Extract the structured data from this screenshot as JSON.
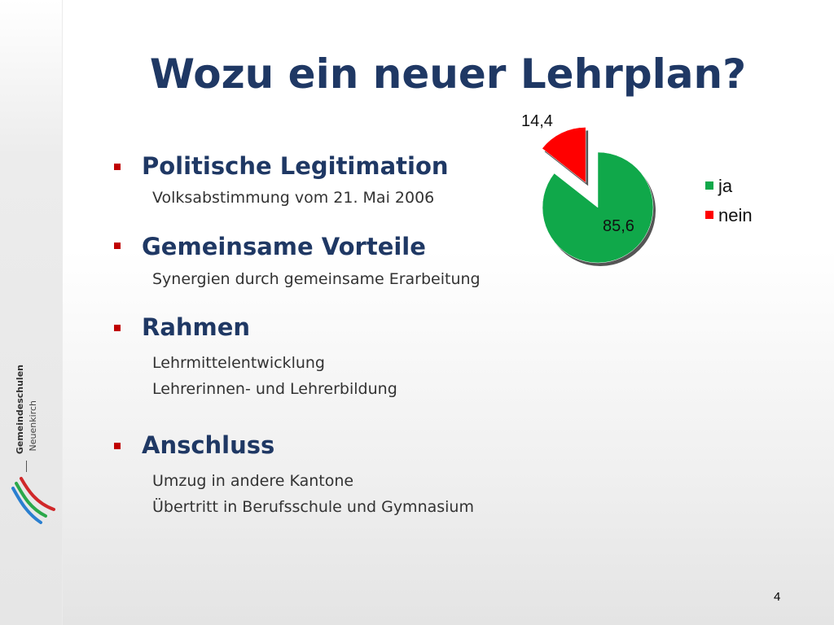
{
  "slide": {
    "title": "Wozu ein neuer Lehrplan?",
    "page_number": "4"
  },
  "logo": {
    "line1": "Gemeindeschulen",
    "line2": "Neuenkirch"
  },
  "sections": [
    {
      "heading": "Politische Legitimation",
      "items": [
        "Volksabstimmung vom 21. Mai 2006"
      ]
    },
    {
      "heading": "Gemeinsame Vorteile",
      "items": [
        "Synergien durch gemeinsame Erarbeitung"
      ]
    },
    {
      "heading": "Rahmen",
      "items": [
        "Lehrmittelentwicklung",
        "Lehrerinnen- und Lehrerbildung"
      ]
    },
    {
      "heading": "Anschluss",
      "items": [
        "Umzug in andere Kantone",
        "Übertritt in Berufsschule und Gymnasium"
      ]
    }
  ],
  "colors": {
    "title": "#1f3864",
    "bullet": "#c00000",
    "ja": "#10a84a",
    "nein": "#ff0000"
  },
  "chart_data": {
    "type": "pie",
    "categories": [
      "ja",
      "nein"
    ],
    "values": [
      85.6,
      14.4
    ],
    "data_labels": [
      "85,6",
      "14,4"
    ],
    "legend": [
      "ja",
      "nein"
    ],
    "legend_placement": "right",
    "exploded": "nein"
  }
}
